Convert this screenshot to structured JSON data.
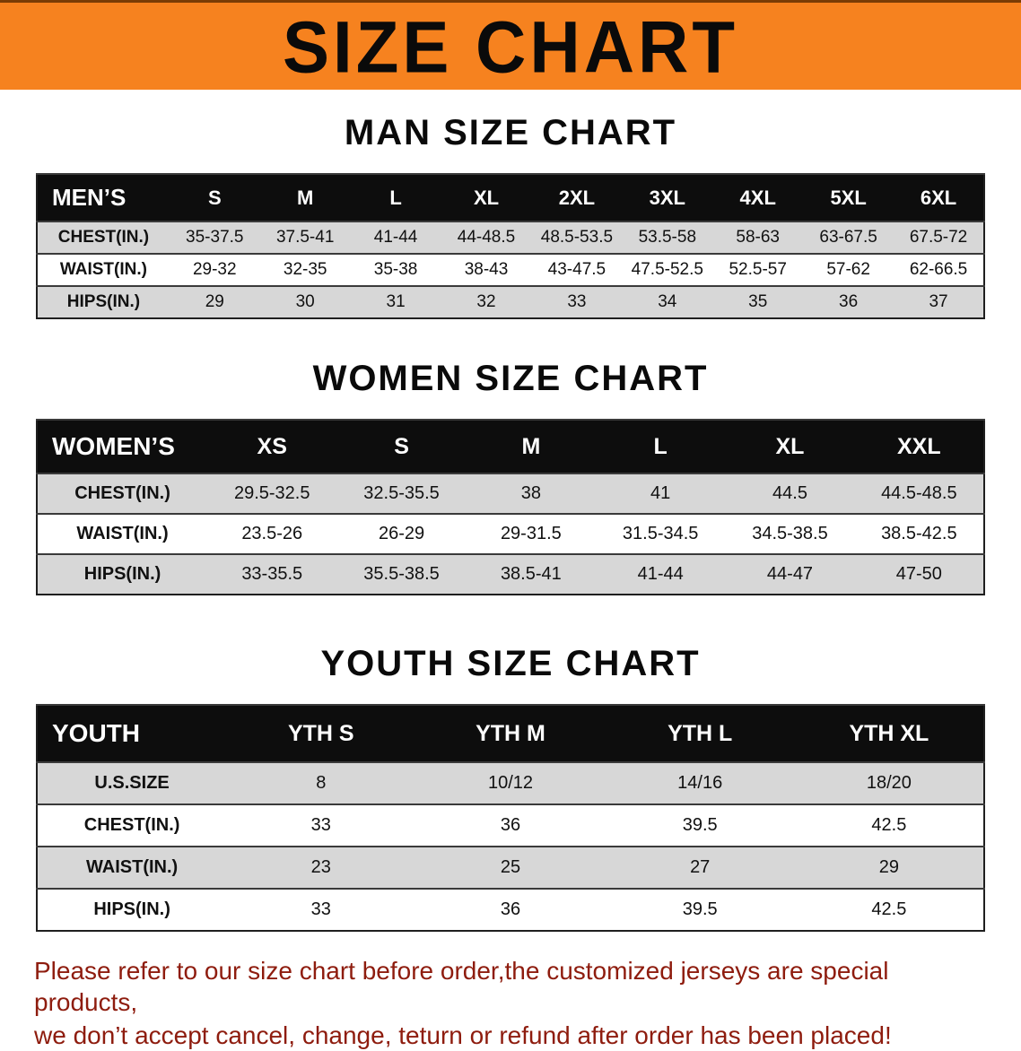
{
  "banner": {
    "title": "SIZE CHART"
  },
  "colors": {
    "banner_bg": "#f6821f",
    "header_bg": "#0d0d0d",
    "row_gray": "#d7d7d7",
    "footer_color": "#8e1c0e"
  },
  "sections": [
    {
      "heading": "MAN SIZE CHART",
      "table": {
        "header": [
          "MEN’S",
          "S",
          "M",
          "L",
          "XL",
          "2XL",
          "3XL",
          "4XL",
          "5XL",
          "6XL"
        ],
        "rows": [
          [
            "CHEST(IN.)",
            "35-37.5",
            "37.5-41",
            "41-44",
            "44-48.5",
            "48.5-53.5",
            "53.5-58",
            "58-63",
            "63-67.5",
            "67.5-72"
          ],
          [
            "WAIST(IN.)",
            "29-32",
            "32-35",
            "35-38",
            "38-43",
            "43-47.5",
            "47.5-52.5",
            "52.5-57",
            "57-62",
            "62-66.5"
          ],
          [
            "HIPS(IN.)",
            "29",
            "30",
            "31",
            "32",
            "33",
            "34",
            "35",
            "36",
            "37"
          ]
        ]
      }
    },
    {
      "heading": "WOMEN SIZE CHART",
      "table": {
        "header": [
          "WOMEN’S",
          "XS",
          "S",
          "M",
          "L",
          "XL",
          "XXL"
        ],
        "rows": [
          [
            "CHEST(IN.)",
            "29.5-32.5",
            "32.5-35.5",
            "38",
            "41",
            "44.5",
            "44.5-48.5"
          ],
          [
            "WAIST(IN.)",
            "23.5-26",
            "26-29",
            "29-31.5",
            "31.5-34.5",
            "34.5-38.5",
            "38.5-42.5"
          ],
          [
            "HIPS(IN.)",
            "33-35.5",
            "35.5-38.5",
            "38.5-41",
            "41-44",
            "44-47",
            "47-50"
          ]
        ]
      }
    },
    {
      "heading": "YOUTH SIZE CHART",
      "table": {
        "header": [
          "YOUTH",
          "YTH S",
          "YTH M",
          "YTH L",
          "YTH XL"
        ],
        "rows": [
          [
            "U.S.SIZE",
            "8",
            "10/12",
            "14/16",
            "18/20"
          ],
          [
            "CHEST(IN.)",
            "33",
            "36",
            "39.5",
            "42.5"
          ],
          [
            "WAIST(IN.)",
            "23",
            "25",
            "27",
            "29"
          ],
          [
            "HIPS(IN.)",
            "33",
            "36",
            "39.5",
            "42.5"
          ]
        ]
      }
    }
  ],
  "footer": {
    "lines": [
      "Please refer to our size chart before order,the customized jerseys are special products,",
      "we don’t accept cancel, change, teturn or refund after order has been placed!"
    ]
  }
}
